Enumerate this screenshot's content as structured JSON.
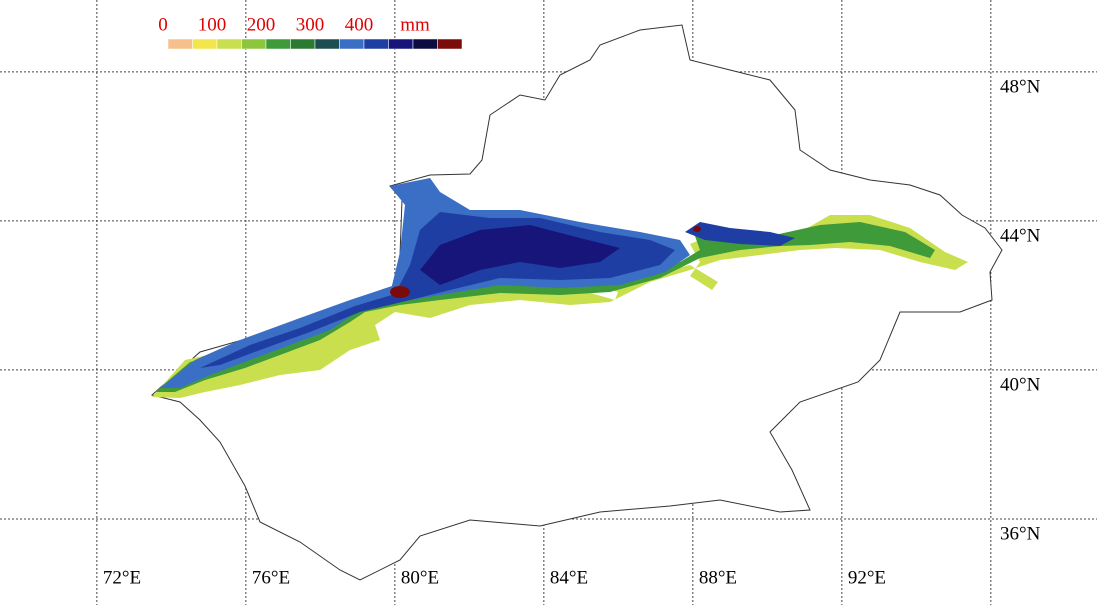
{
  "map": {
    "xlim": [
      69.4,
      98.85
    ],
    "ylim": [
      33.69,
      49.93
    ],
    "lon_ticks": [
      {
        "value": 72,
        "label": "72°E"
      },
      {
        "value": 76,
        "label": "76°E"
      },
      {
        "value": 80,
        "label": "80°E"
      },
      {
        "value": 84,
        "label": "84°E"
      },
      {
        "value": 88,
        "label": "88°E"
      },
      {
        "value": 92,
        "label": "92°E"
      },
      {
        "value": 96,
        "label": null
      }
    ],
    "lat_ticks": [
      {
        "value": 48,
        "label": "48°N"
      },
      {
        "value": 44,
        "label": "44°N"
      },
      {
        "value": 40,
        "label": "40°N"
      },
      {
        "value": 36,
        "label": "36°N"
      }
    ],
    "legend": {
      "labels": [
        0,
        100,
        200,
        300,
        400
      ],
      "unit": "mm",
      "step": 50,
      "colors": [
        "#f6c08c",
        "#f3e64c",
        "#c9df4e",
        "#8dc63d",
        "#3f9a3a",
        "#2a7a32",
        "#1d4d52",
        "#3b6fc6",
        "#1f3ea3",
        "#17157a",
        "#0c0c40",
        "#7b0a0a"
      ],
      "label_color": "#e00000"
    }
  }
}
